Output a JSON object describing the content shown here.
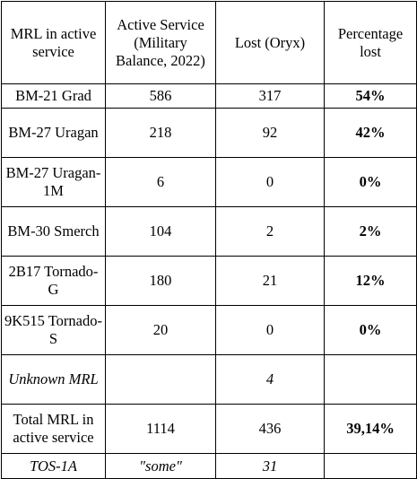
{
  "table": {
    "headers": [
      "MRL in active service",
      "Active Service (Military Balance, 2022)",
      "Lost (Oryx)",
      "Percentage lost"
    ],
    "rows": [
      {
        "name": "BM-21 Grad",
        "active": "586",
        "lost": "317",
        "pct": "54%"
      },
      {
        "name": "BM-27 Uragan",
        "active": "218",
        "lost": "92",
        "pct": "42%"
      },
      {
        "name": "BM-27 Uragan-1M",
        "active": "6",
        "lost": "0",
        "pct": "0%"
      },
      {
        "name": "BM-30 Smerch",
        "active": "104",
        "lost": "2",
        "pct": "2%"
      },
      {
        "name": "2B17 Tornado-G",
        "active": "180",
        "lost": "21",
        "pct": "12%"
      },
      {
        "name": "9K515 Tornado-S",
        "active": "20",
        "lost": "0",
        "pct": "0%"
      },
      {
        "name": "Unknown MRL",
        "active": "",
        "lost": "4",
        "pct": ""
      },
      {
        "name": "Total MRL in active service",
        "active": "1114",
        "lost": "436",
        "pct": "39,14%"
      },
      {
        "name": "TOS-1A",
        "active": "\"some\"",
        "lost": "31",
        "pct": ""
      }
    ]
  }
}
